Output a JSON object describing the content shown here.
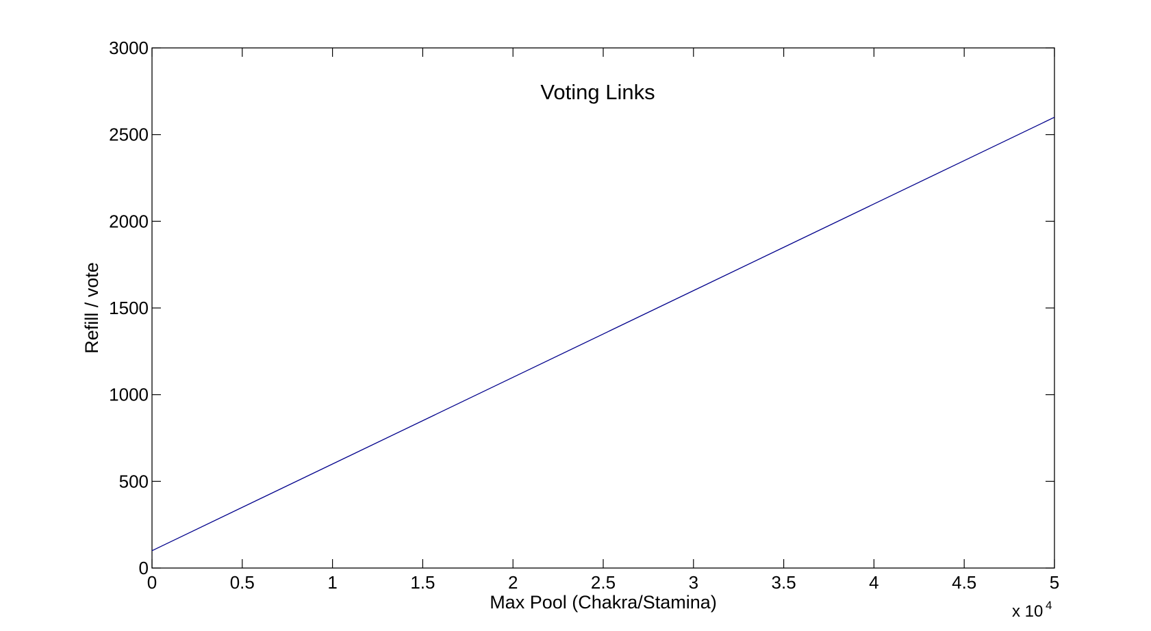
{
  "chart_data": {
    "type": "line",
    "title": "Voting Links",
    "xlabel": "Max Pool (Chakra/Stamina)",
    "ylabel": "Refill / vote",
    "x_exponent_label": "x 10",
    "x_exponent_power": "4",
    "xlim": [
      0,
      5
    ],
    "ylim": [
      0,
      3000
    ],
    "xticks": [
      0,
      0.5,
      1,
      1.5,
      2,
      2.5,
      3,
      3.5,
      4,
      4.5,
      5
    ],
    "xtick_labels": [
      "0",
      "0.5",
      "1",
      "1.5",
      "2",
      "2.5",
      "3",
      "3.5",
      "4",
      "4.5",
      "5"
    ],
    "yticks": [
      0,
      500,
      1000,
      1500,
      2000,
      2500,
      3000
    ],
    "ytick_labels": [
      "0",
      "500",
      "1000",
      "1500",
      "2000",
      "2500",
      "3000"
    ],
    "grid": false,
    "legend": false,
    "line_color": "#00008b",
    "series": [
      {
        "x": [
          0,
          5
        ],
        "y": [
          100,
          2600
        ]
      }
    ]
  }
}
